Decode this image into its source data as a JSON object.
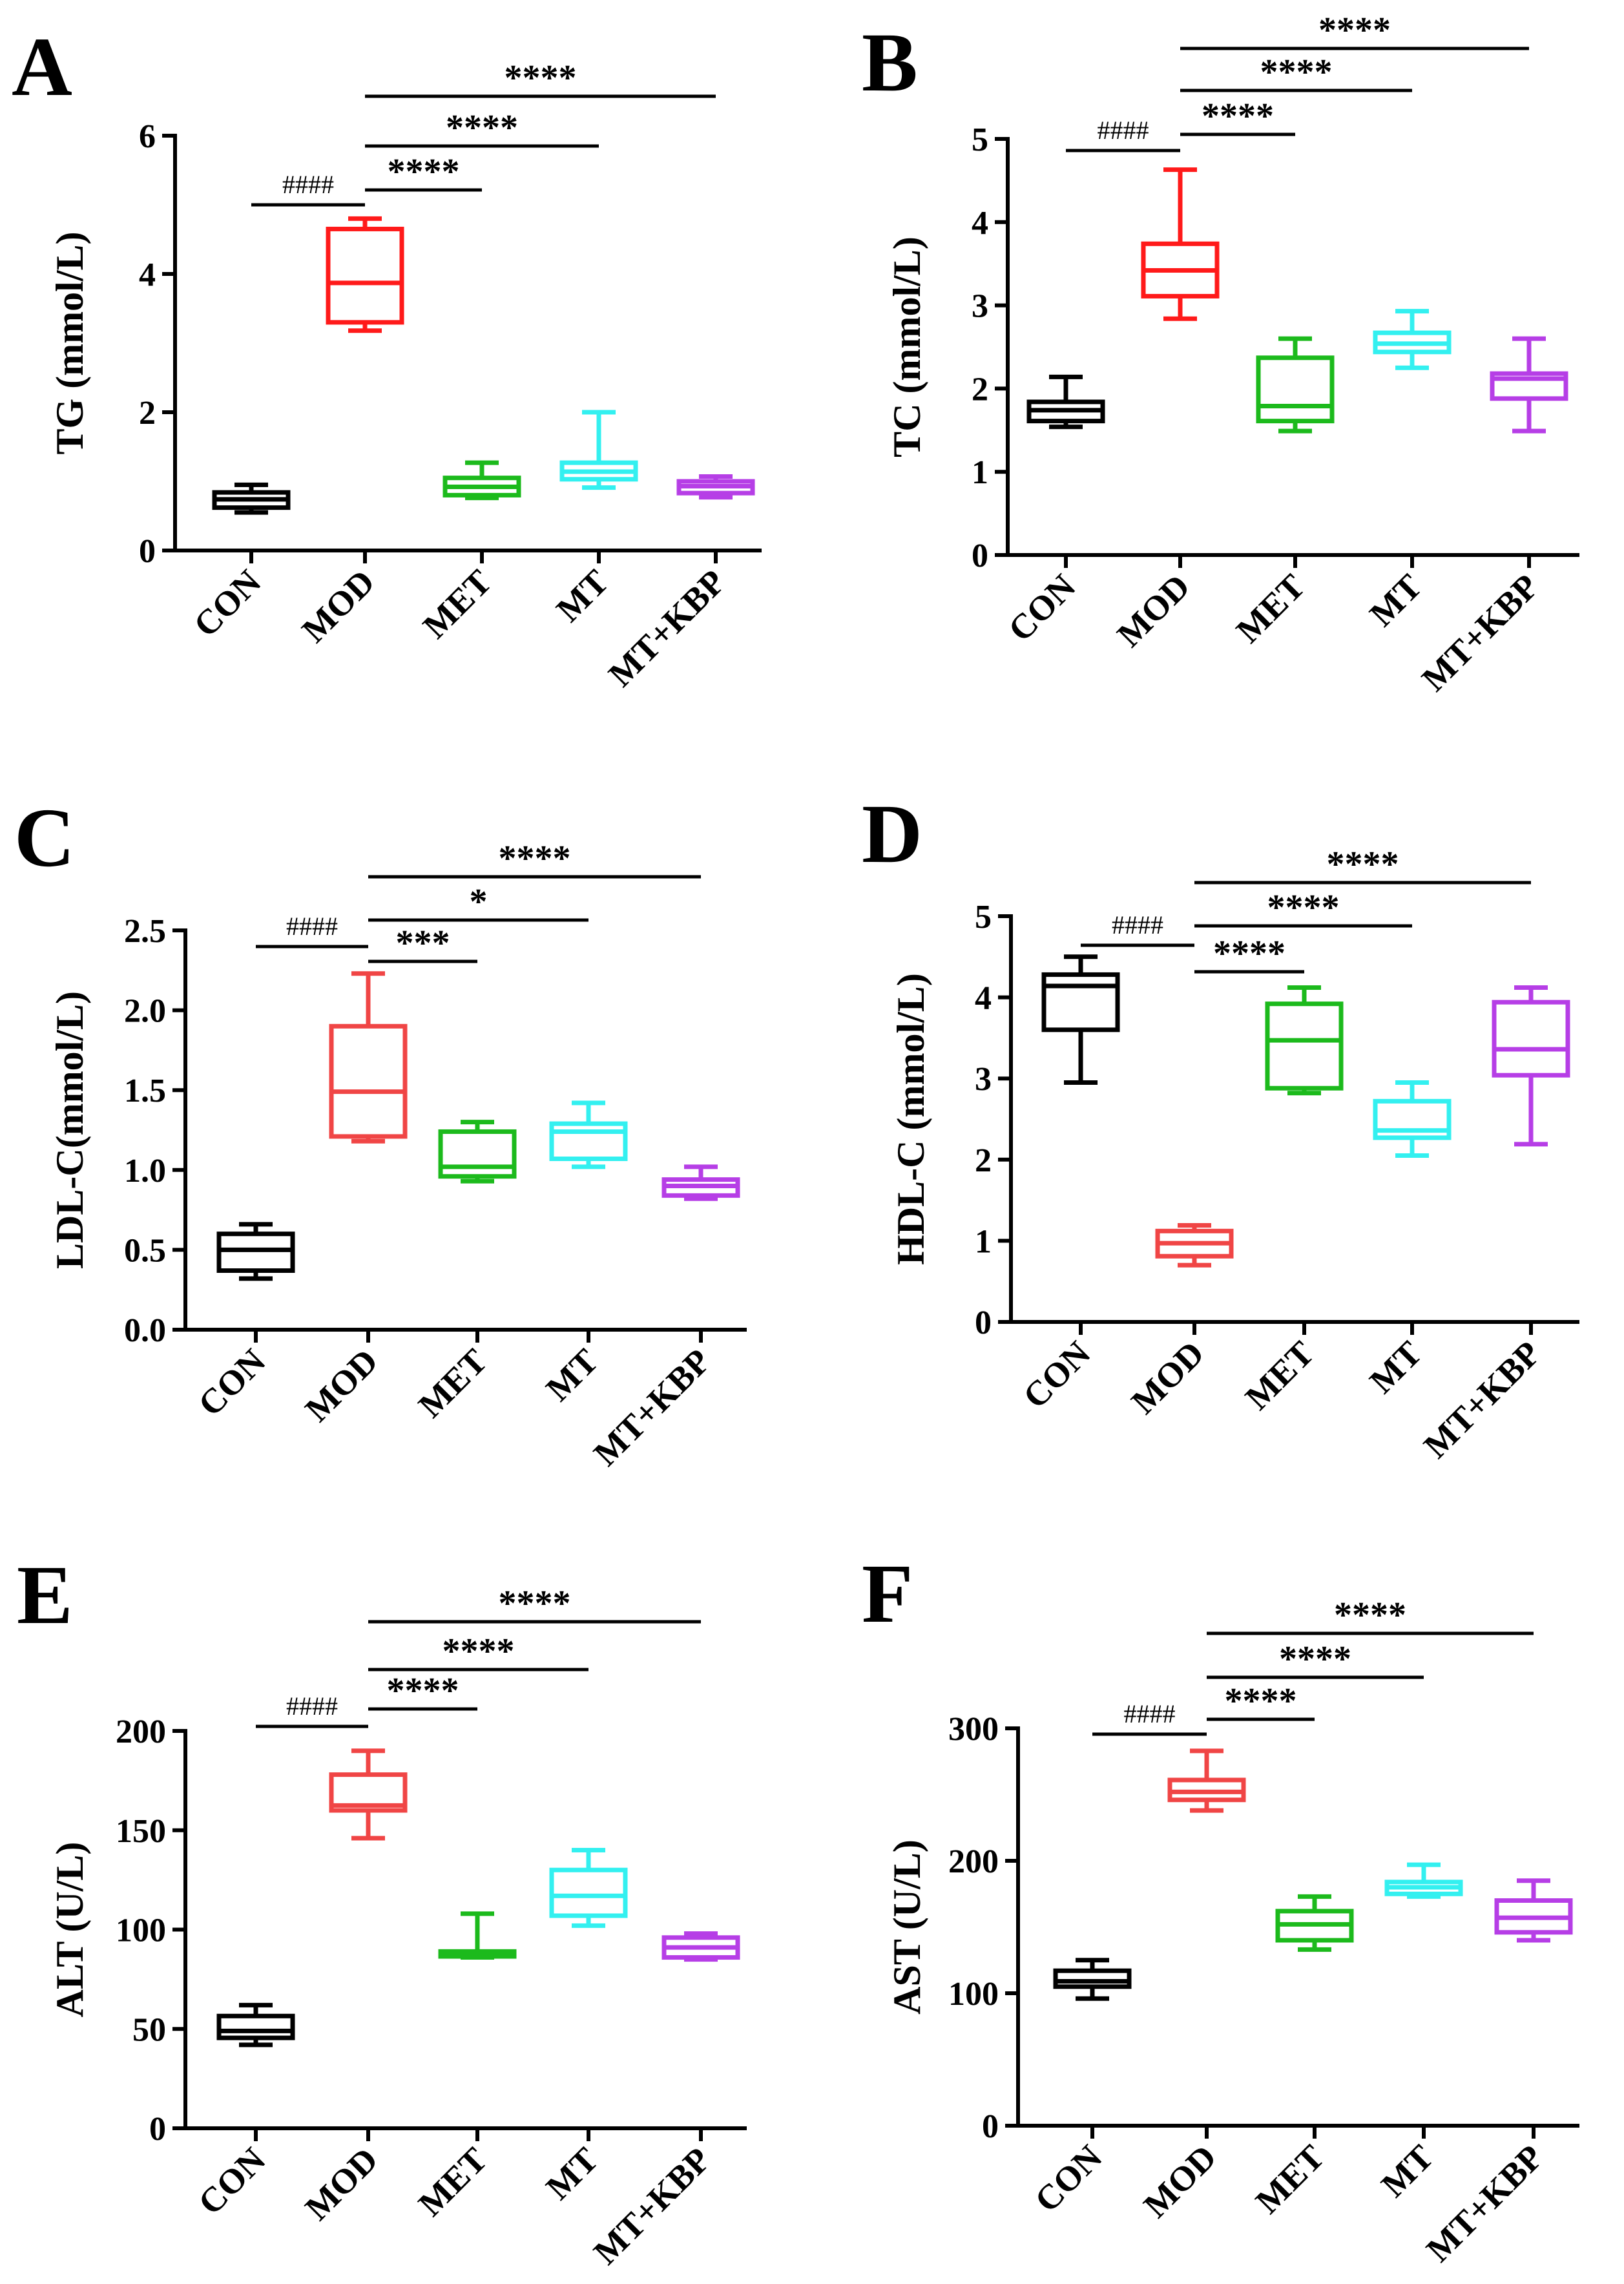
{
  "chart_data": [
    {
      "panel": "A",
      "type": "box",
      "ylabel": "TG (mmol/L)",
      "categories": [
        "CON",
        "MOD",
        "MET",
        "MT",
        "MT+KBP"
      ],
      "ylim": [
        0,
        6
      ],
      "yticks": [
        0,
        2,
        4,
        6
      ],
      "ytick_labels": [
        "0",
        "2",
        "4",
        "6"
      ],
      "boxes": [
        {
          "min": 0.55,
          "q1": 0.62,
          "median": 0.74,
          "q3": 0.84,
          "max": 0.95
        },
        {
          "min": 3.18,
          "q1": 3.3,
          "median": 3.87,
          "q3": 4.65,
          "max": 4.8
        },
        {
          "min": 0.76,
          "q1": 0.8,
          "median": 0.92,
          "q3": 1.05,
          "max": 1.27
        },
        {
          "min": 0.91,
          "q1": 1.03,
          "median": 1.14,
          "q3": 1.27,
          "max": 2.0
        },
        {
          "min": 0.77,
          "q1": 0.83,
          "median": 0.93,
          "q3": 1.0,
          "max": 1.07
        }
      ],
      "colors": [
        "#000000",
        "#ff1a1a",
        "#1cba1c",
        "#33f0f0",
        "#b63ee6"
      ],
      "comparisons": [
        {
          "from": 0,
          "to": 1,
          "label": "####"
        },
        {
          "from": 1,
          "to": 2,
          "label": "****"
        },
        {
          "from": 1,
          "to": 3,
          "label": "****"
        },
        {
          "from": 1,
          "to": 4,
          "label": "****"
        }
      ]
    },
    {
      "panel": "B",
      "type": "box",
      "ylabel": "TC (mmol/L)",
      "categories": [
        "CON",
        "MOD",
        "MET",
        "MT",
        "MT+KBP"
      ],
      "ylim": [
        0,
        5
      ],
      "yticks": [
        0,
        1,
        2,
        3,
        4,
        5
      ],
      "ytick_labels": [
        "0",
        "1",
        "2",
        "3",
        "4",
        "5"
      ],
      "boxes": [
        {
          "min": 1.54,
          "q1": 1.61,
          "median": 1.74,
          "q3": 1.84,
          "max": 2.14
        },
        {
          "min": 2.84,
          "q1": 3.11,
          "median": 3.42,
          "q3": 3.74,
          "max": 4.63
        },
        {
          "min": 1.49,
          "q1": 1.61,
          "median": 1.79,
          "q3": 2.37,
          "max": 2.6
        },
        {
          "min": 2.25,
          "q1": 2.44,
          "median": 2.54,
          "q3": 2.67,
          "max": 2.93
        },
        {
          "min": 1.49,
          "q1": 1.88,
          "median": 2.12,
          "q3": 2.18,
          "max": 2.6
        }
      ],
      "colors": [
        "#000000",
        "#ff1a1a",
        "#1cba1c",
        "#33f0f0",
        "#b63ee6"
      ],
      "comparisons": [
        {
          "from": 0,
          "to": 1,
          "label": "####"
        },
        {
          "from": 1,
          "to": 2,
          "label": "****"
        },
        {
          "from": 1,
          "to": 3,
          "label": "****"
        },
        {
          "from": 1,
          "to": 4,
          "label": "****"
        }
      ]
    },
    {
      "panel": "C",
      "type": "box",
      "ylabel": "LDL-C(mmol/L)",
      "categories": [
        "CON",
        "MOD",
        "MET",
        "MT",
        "MT+KBP"
      ],
      "ylim": [
        0,
        2.5
      ],
      "yticks": [
        0,
        0.5,
        1.0,
        1.5,
        2.0,
        2.5
      ],
      "ytick_labels": [
        "0.0",
        "0.5",
        "1.0",
        "1.5",
        "2.0",
        "2.5"
      ],
      "boxes": [
        {
          "min": 0.32,
          "q1": 0.37,
          "median": 0.5,
          "q3": 0.6,
          "max": 0.66
        },
        {
          "min": 1.18,
          "q1": 1.21,
          "median": 1.49,
          "q3": 1.9,
          "max": 2.23
        },
        {
          "min": 0.93,
          "q1": 0.96,
          "median": 1.02,
          "q3": 1.24,
          "max": 1.3
        },
        {
          "min": 1.02,
          "q1": 1.07,
          "median": 1.24,
          "q3": 1.29,
          "max": 1.42
        },
        {
          "min": 0.82,
          "q1": 0.84,
          "median": 0.9,
          "q3": 0.94,
          "max": 1.02
        }
      ],
      "colors": [
        "#000000",
        "#f04545",
        "#1cba1c",
        "#33f0f0",
        "#b63ee6"
      ],
      "comparisons": [
        {
          "from": 0,
          "to": 1,
          "label": "####"
        },
        {
          "from": 1,
          "to": 2,
          "label": "***"
        },
        {
          "from": 1,
          "to": 3,
          "label": "*"
        },
        {
          "from": 1,
          "to": 4,
          "label": "****"
        }
      ]
    },
    {
      "panel": "D",
      "type": "box",
      "ylabel": "HDL-C (mmol/L)",
      "categories": [
        "CON",
        "MOD",
        "MET",
        "MT",
        "MT+KBP"
      ],
      "ylim": [
        0,
        5
      ],
      "yticks": [
        0,
        1,
        2,
        3,
        4,
        5
      ],
      "ytick_labels": [
        "0",
        "1",
        "2",
        "3",
        "4",
        "5"
      ],
      "boxes": [
        {
          "min": 2.95,
          "q1": 3.6,
          "median": 4.14,
          "q3": 4.28,
          "max": 4.5
        },
        {
          "min": 0.7,
          "q1": 0.81,
          "median": 0.97,
          "q3": 1.12,
          "max": 1.19
        },
        {
          "min": 2.82,
          "q1": 2.88,
          "median": 3.47,
          "q3": 3.92,
          "max": 4.12
        },
        {
          "min": 2.05,
          "q1": 2.27,
          "median": 2.36,
          "q3": 2.72,
          "max": 2.95
        },
        {
          "min": 2.19,
          "q1": 3.04,
          "median": 3.36,
          "q3": 3.94,
          "max": 4.12
        }
      ],
      "colors": [
        "#000000",
        "#f04545",
        "#1cba1c",
        "#33f0f0",
        "#b63ee6"
      ],
      "comparisons": [
        {
          "from": 0,
          "to": 1,
          "label": "####"
        },
        {
          "from": 1,
          "to": 2,
          "label": "****"
        },
        {
          "from": 1,
          "to": 3,
          "label": "****"
        },
        {
          "from": 1,
          "to": 4,
          "label": "****"
        }
      ]
    },
    {
      "panel": "E",
      "type": "box",
      "ylabel": "ALT (U/L)",
      "categories": [
        "CON",
        "MOD",
        "MET",
        "MT",
        "MT+KBP"
      ],
      "ylim": [
        0,
        200
      ],
      "yticks": [
        0,
        50,
        100,
        150,
        200
      ],
      "ytick_labels": [
        "0",
        "50",
        "100",
        "150",
        "200"
      ],
      "boxes": [
        {
          "min": 42,
          "q1": 45.5,
          "median": 49,
          "q3": 56.5,
          "max": 62
        },
        {
          "min": 146,
          "q1": 160,
          "median": 162.5,
          "q3": 178,
          "max": 190
        },
        {
          "min": 86,
          "q1": 86.5,
          "median": 87.5,
          "q3": 89,
          "max": 108
        },
        {
          "min": 102,
          "q1": 107,
          "median": 117,
          "q3": 130,
          "max": 140
        },
        {
          "min": 85,
          "q1": 86,
          "median": 91,
          "q3": 96,
          "max": 98
        }
      ],
      "colors": [
        "#000000",
        "#f04545",
        "#1cba1c",
        "#33f0f0",
        "#b63ee6"
      ],
      "comparisons": [
        {
          "from": 0,
          "to": 1,
          "label": "####"
        },
        {
          "from": 1,
          "to": 2,
          "label": "****"
        },
        {
          "from": 1,
          "to": 3,
          "label": "****"
        },
        {
          "from": 1,
          "to": 4,
          "label": "****"
        }
      ]
    },
    {
      "panel": "F",
      "type": "box",
      "ylabel": "AST (U/L)",
      "categories": [
        "CON",
        "MOD",
        "MET",
        "MT",
        "MT+KBP"
      ],
      "ylim": [
        0,
        300
      ],
      "yticks": [
        0,
        100,
        200,
        300
      ],
      "ytick_labels": [
        "0",
        "100",
        "200",
        "300"
      ],
      "boxes": [
        {
          "min": 96,
          "q1": 105,
          "median": 109,
          "q3": 117,
          "max": 125
        },
        {
          "min": 238,
          "q1": 246,
          "median": 252,
          "q3": 261,
          "max": 283
        },
        {
          "min": 133,
          "q1": 140,
          "median": 152,
          "q3": 162,
          "max": 173
        },
        {
          "min": 173,
          "q1": 175,
          "median": 180,
          "q3": 184,
          "max": 197
        },
        {
          "min": 140,
          "q1": 146,
          "median": 157,
          "q3": 170,
          "max": 185
        }
      ],
      "colors": [
        "#000000",
        "#f04545",
        "#1cba1c",
        "#33f0f0",
        "#b63ee6"
      ],
      "comparisons": [
        {
          "from": 0,
          "to": 1,
          "label": "####"
        },
        {
          "from": 1,
          "to": 2,
          "label": "****"
        },
        {
          "from": 1,
          "to": 3,
          "label": "****"
        },
        {
          "from": 1,
          "to": 4,
          "label": "****"
        }
      ]
    }
  ]
}
